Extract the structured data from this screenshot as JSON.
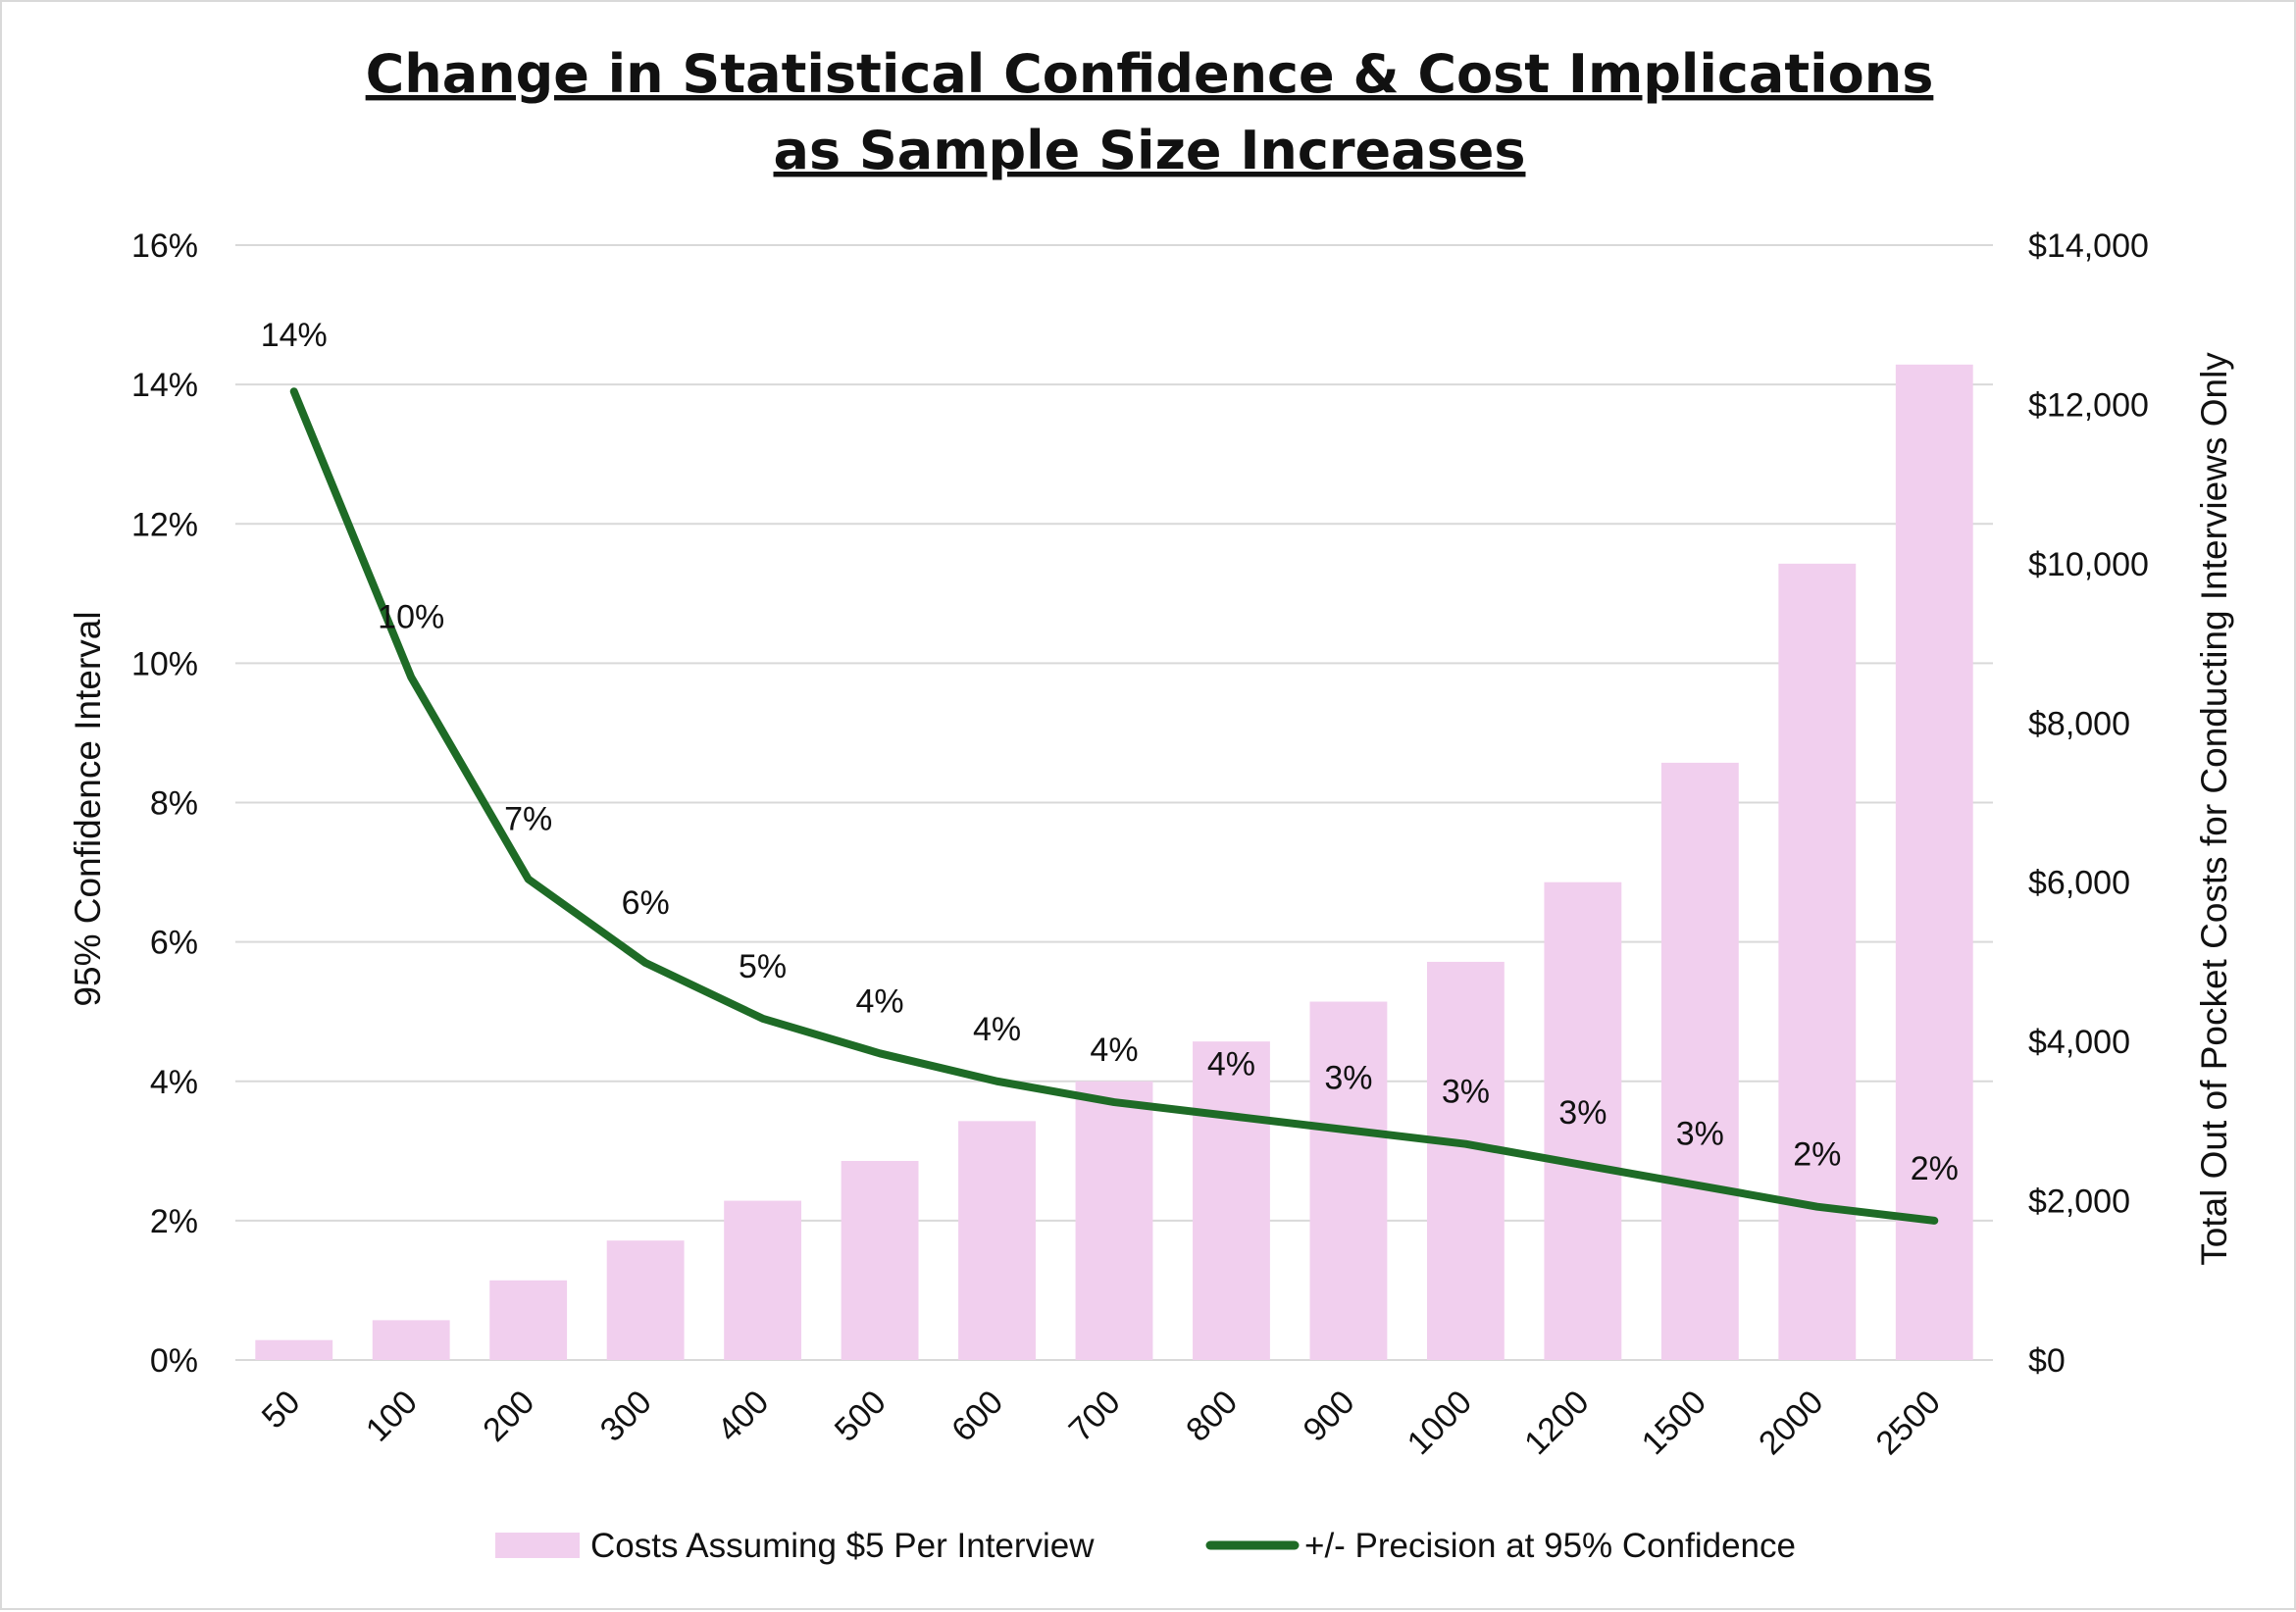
{
  "chart_data": {
    "type": "bar+line",
    "title_line1": "Change in Statistical Confidence & Cost Implications",
    "title_line2": "as Sample Size Increases",
    "categories": [
      "50",
      "100",
      "200",
      "300",
      "400",
      "500",
      "600",
      "700",
      "800",
      "900",
      "1000",
      "1200",
      "1500",
      "2000",
      "2500"
    ],
    "series": [
      {
        "name": "Costs Assuming $5 Per Interview",
        "kind": "bar",
        "axis": "right",
        "color": "#f1cfee",
        "values": [
          250,
          500,
          1000,
          1500,
          2000,
          2500,
          3000,
          3500,
          4000,
          4500,
          5000,
          6000,
          7500,
          10000,
          12500
        ]
      },
      {
        "name": "+/- Precision at 95% Confidence",
        "kind": "line",
        "axis": "left",
        "color": "#1e6b26",
        "values": [
          13.9,
          9.8,
          6.9,
          5.7,
          4.9,
          4.4,
          4.0,
          3.7,
          3.5,
          3.3,
          3.1,
          2.8,
          2.5,
          2.2,
          2.0
        ],
        "labels": [
          "14%",
          "10%",
          "7%",
          "6%",
          "5%",
          "4%",
          "4%",
          "4%",
          "4%",
          "3%",
          "3%",
          "3%",
          "3%",
          "2%",
          "2%"
        ]
      }
    ],
    "y_left": {
      "label": "95% Confidence Interval",
      "range": [
        0,
        16
      ],
      "ticks": [
        "0%",
        "2%",
        "4%",
        "6%",
        "8%",
        "10%",
        "12%",
        "14%",
        "16%"
      ]
    },
    "y_right": {
      "label": "Total Out of Pocket Costs for Conducting Interviews Only",
      "range": [
        0,
        14000
      ],
      "ticks": [
        "$0",
        "$2,000",
        "$4,000",
        "$6,000",
        "$8,000",
        "$10,000",
        "$12,000",
        "$14,000"
      ]
    },
    "grid": true,
    "legend_position": "bottom"
  }
}
